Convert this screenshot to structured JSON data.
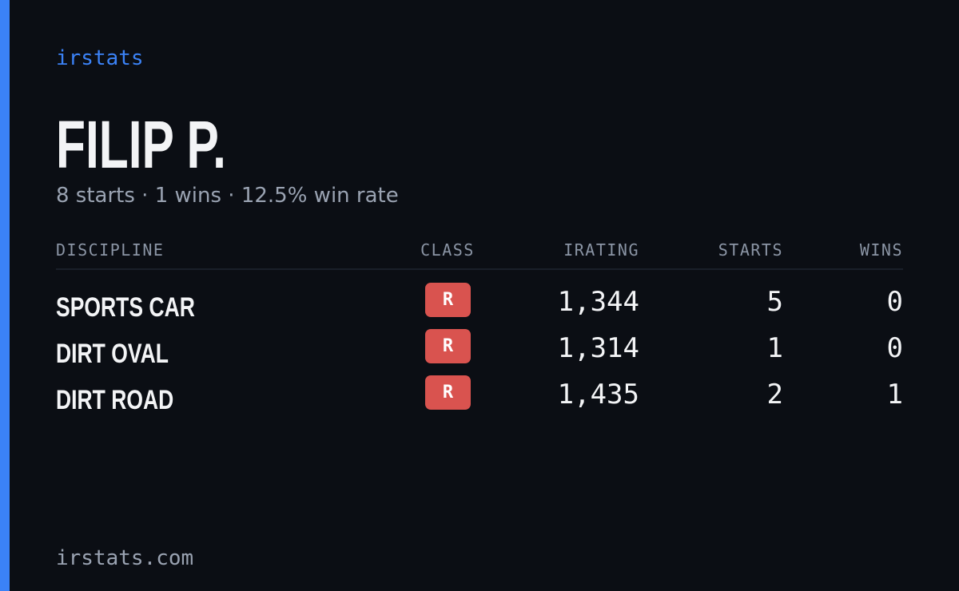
{
  "header": {
    "brand": "irstats",
    "name": "FILIP P.",
    "summary": "8 starts · 1 wins · 12.5% win rate"
  },
  "table": {
    "columns": [
      "DISCIPLINE",
      "CLASS",
      "IRATING",
      "STARTS",
      "WINS"
    ],
    "rows": [
      [
        "SPORTS CAR",
        "R",
        "1,344",
        "5",
        "0"
      ],
      [
        "DIRT OVAL",
        "R",
        "1,314",
        "1",
        "0"
      ],
      [
        "DIRT ROAD",
        "R",
        "1,435",
        "2",
        "1"
      ]
    ]
  },
  "footer": {
    "site": "irstats.com"
  }
}
